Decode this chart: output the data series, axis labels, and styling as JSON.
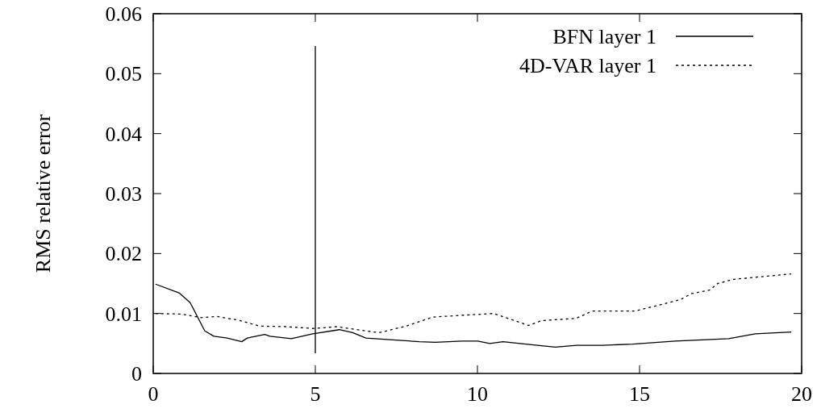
{
  "chart_data": {
    "type": "line",
    "ylabel": "RMS relative error",
    "xlim": [
      0,
      20
    ],
    "xticks": [
      0,
      5,
      10,
      15,
      20
    ],
    "ylim": [
      0,
      0.06
    ],
    "yticks": [
      0,
      0.01,
      0.02,
      0.03,
      0.04,
      0.05,
      0.06
    ],
    "grid": false,
    "legend": "top right",
    "ref_lines": [
      {
        "axis": "x",
        "value": 5,
        "color": "#000000",
        "line_style": "solid"
      }
    ],
    "series": [
      {
        "name": "BFN layer 1",
        "color": "#000000",
        "line_style": "solid",
        "x": [
          0.07,
          0.81,
          1.14,
          1.59,
          1.87,
          2.28,
          2.73,
          2.9,
          3.44,
          3.6,
          4.26,
          4.92,
          5.74,
          6.15,
          6.56,
          7.39,
          8.21,
          8.7,
          9.52,
          10.01,
          10.38,
          10.79,
          11.49,
          12.4,
          13.06,
          13.88,
          14.79,
          16.1,
          17.75,
          18.57,
          19.68
        ],
        "values": [
          0.0149,
          0.0134,
          0.0118,
          0.0071,
          0.0062,
          0.0059,
          0.0053,
          0.0059,
          0.0065,
          0.0062,
          0.0058,
          0.0066,
          0.0073,
          0.0068,
          0.0059,
          0.0056,
          0.0053,
          0.0052,
          0.0054,
          0.0054,
          0.005,
          0.0053,
          0.0049,
          0.0044,
          0.0047,
          0.0047,
          0.0049,
          0.0054,
          0.0058,
          0.0066,
          0.0069
        ]
      },
      {
        "name": "4D-VAR layer 1",
        "color": "#000000",
        "line_style": "dotted",
        "x": [
          0.07,
          0.89,
          1.47,
          1.96,
          2.62,
          3.28,
          4.1,
          4.92,
          5.66,
          6.56,
          6.97,
          7.8,
          8.62,
          9.52,
          10.5,
          11.16,
          11.57,
          11.98,
          13.05,
          13.54,
          14.86,
          16.26,
          16.59,
          17.16,
          17.41,
          17.9,
          19.68
        ],
        "values": [
          0.01,
          0.0099,
          0.0093,
          0.0095,
          0.0089,
          0.0079,
          0.0078,
          0.0075,
          0.0078,
          0.0071,
          0.0068,
          0.0079,
          0.0094,
          0.0097,
          0.01,
          0.0088,
          0.008,
          0.0088,
          0.0092,
          0.0104,
          0.0104,
          0.0123,
          0.0133,
          0.0139,
          0.015,
          0.0157,
          0.0166
        ]
      }
    ]
  }
}
